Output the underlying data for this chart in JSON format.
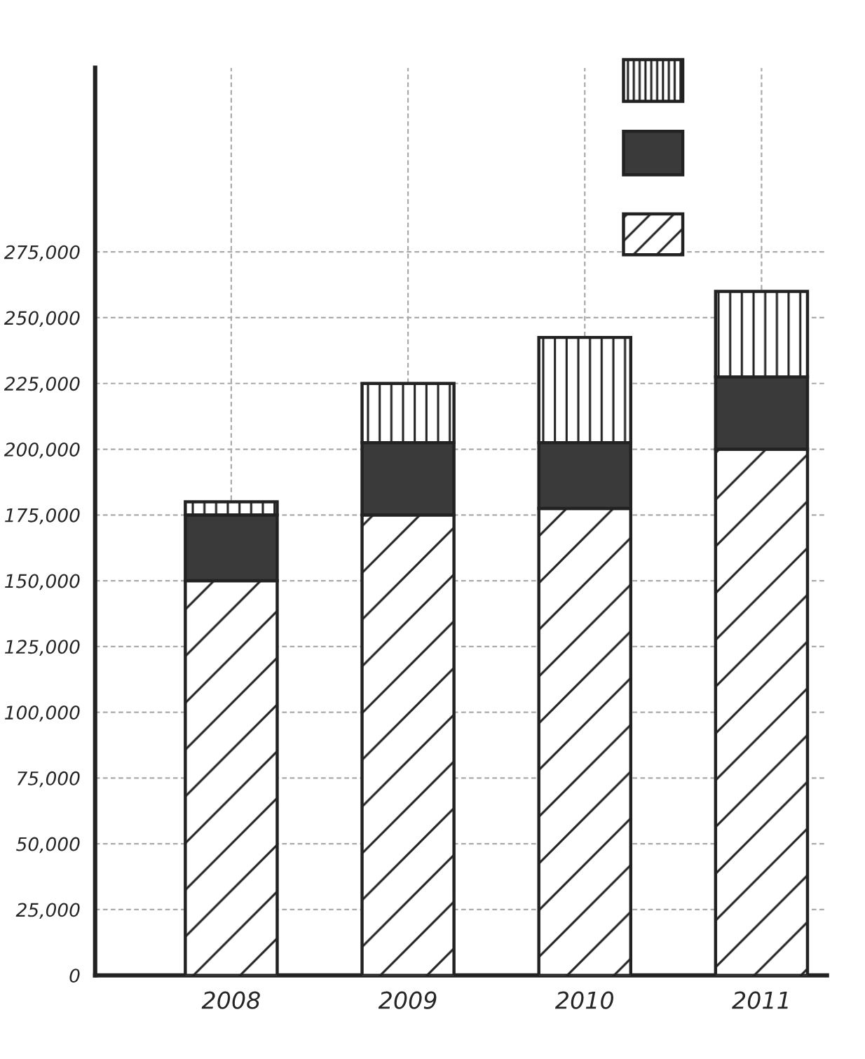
{
  "chart_data": {
    "type": "bar",
    "stacked": true,
    "categories": [
      "2008",
      "2009",
      "2010",
      "2011"
    ],
    "series": [
      {
        "color": "#222222",
        "values": [
          150000,
          175000,
          177500,
          200000
        ]
      },
      {
        "color": "#3a3a3a",
        "values": [
          25000,
          27500,
          25000,
          27500
        ]
      },
      {
        "color": "#222222",
        "values": [
          5000,
          22500,
          40000,
          32500
        ]
      }
    ],
    "ylim": [
      0,
      345000
    ],
    "yticks": [
      {
        "value": 0,
        "label": "0"
      },
      {
        "value": 25000,
        "label": "25,000"
      },
      {
        "value": 50000,
        "label": "50,000"
      },
      {
        "value": 75000,
        "label": "75,000"
      },
      {
        "value": 100000,
        "label": "100,000"
      },
      {
        "value": 125000,
        "label": "125,000"
      },
      {
        "value": 150000,
        "label": "150,000"
      },
      {
        "value": 175000,
        "label": "175,000"
      },
      {
        "value": 200000,
        "label": "200,000"
      },
      {
        "value": 225000,
        "label": "225,000"
      },
      {
        "value": 250000,
        "label": "250,000"
      },
      {
        "value": 275000,
        "label": "275,000"
      }
    ],
    "grid": true
  }
}
